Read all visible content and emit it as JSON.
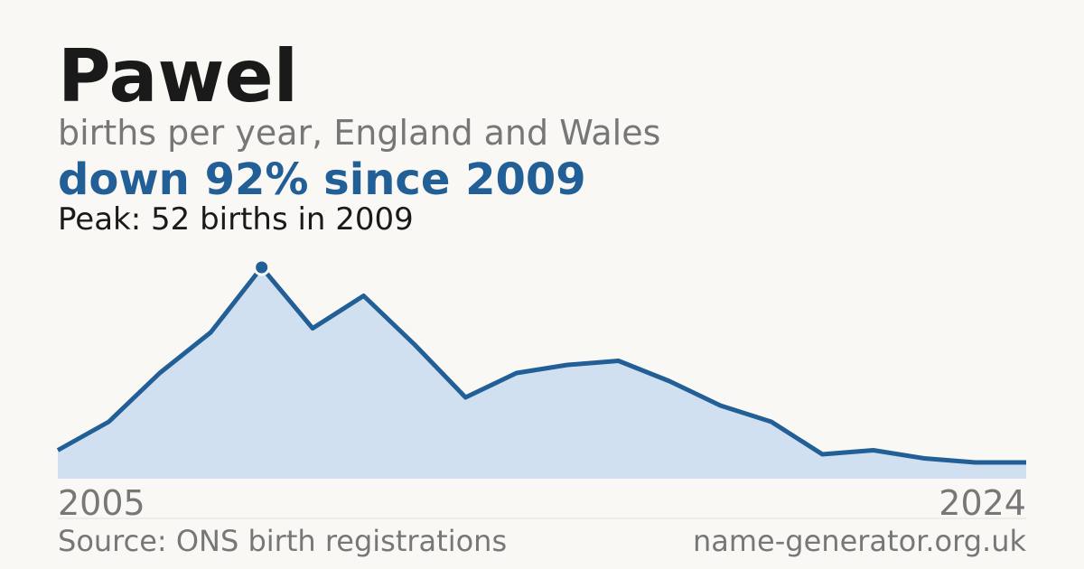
{
  "chart_data": {
    "type": "area",
    "title": "Pawel",
    "subtitle": "births per year, England and Wales",
    "headline": "down 92% since 2009",
    "annotation": "Peak: 52 births in 2009",
    "source": "Source: ONS birth registrations",
    "site": "name-generator.org.uk",
    "x": [
      2005,
      2006,
      2007,
      2008,
      2009,
      2010,
      2011,
      2012,
      2013,
      2014,
      2015,
      2016,
      2017,
      2018,
      2019,
      2020,
      2021,
      2022,
      2023,
      2024
    ],
    "values": [
      7,
      14,
      26,
      36,
      52,
      37,
      45,
      33,
      20,
      26,
      28,
      29,
      24,
      18,
      14,
      6,
      7,
      5,
      4,
      4
    ],
    "color": "#215f96",
    "fill_color": "#d0e0f0"
  }
}
